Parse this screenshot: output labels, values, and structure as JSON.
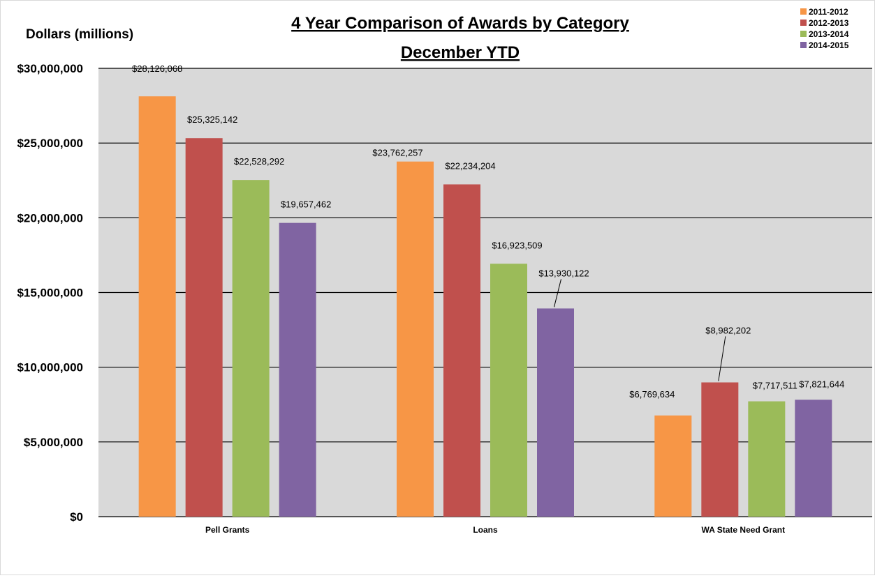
{
  "chart_data": {
    "type": "bar",
    "title": "4 Year Comparison of Awards by Category",
    "subtitle": "December YTD",
    "xlabel": "",
    "ylabel": "Dollars (millions)",
    "ylim": [
      0,
      30000000
    ],
    "yticks": [
      0,
      5000000,
      10000000,
      15000000,
      20000000,
      25000000,
      30000000
    ],
    "ytick_labels": [
      "$0",
      "$5,000,000",
      "$10,000,000",
      "$15,000,000",
      "$20,000,000",
      "$25,000,000",
      "$30,000,000"
    ],
    "grid": true,
    "legend_position": "top-right",
    "categories": [
      "Pell Grants",
      "Loans",
      "WA State Need Grant"
    ],
    "series": [
      {
        "name": "2011-2012",
        "color": "#f79646",
        "values": [
          28126068,
          23762257,
          6769634
        ],
        "labels": [
          "$28,126,068",
          "$23,762,257",
          "$6,769,634"
        ]
      },
      {
        "name": "2012-2013",
        "color": "#c0504d",
        "values": [
          25325142,
          22234204,
          8982202
        ],
        "labels": [
          "$25,325,142",
          "$22,234,204",
          "$8,982,202"
        ]
      },
      {
        "name": "2013-2014",
        "color": "#9bbb59",
        "values": [
          22528292,
          16923509,
          7717511
        ],
        "labels": [
          "$22,528,292",
          "$16,923,509",
          "$7,717,511"
        ]
      },
      {
        "name": "2014-2015",
        "color": "#8064a2",
        "values": [
          19657462,
          13930122,
          7821644
        ],
        "labels": [
          "$19,657,462",
          "$13,930,122",
          "$7,821,644"
        ]
      }
    ]
  }
}
